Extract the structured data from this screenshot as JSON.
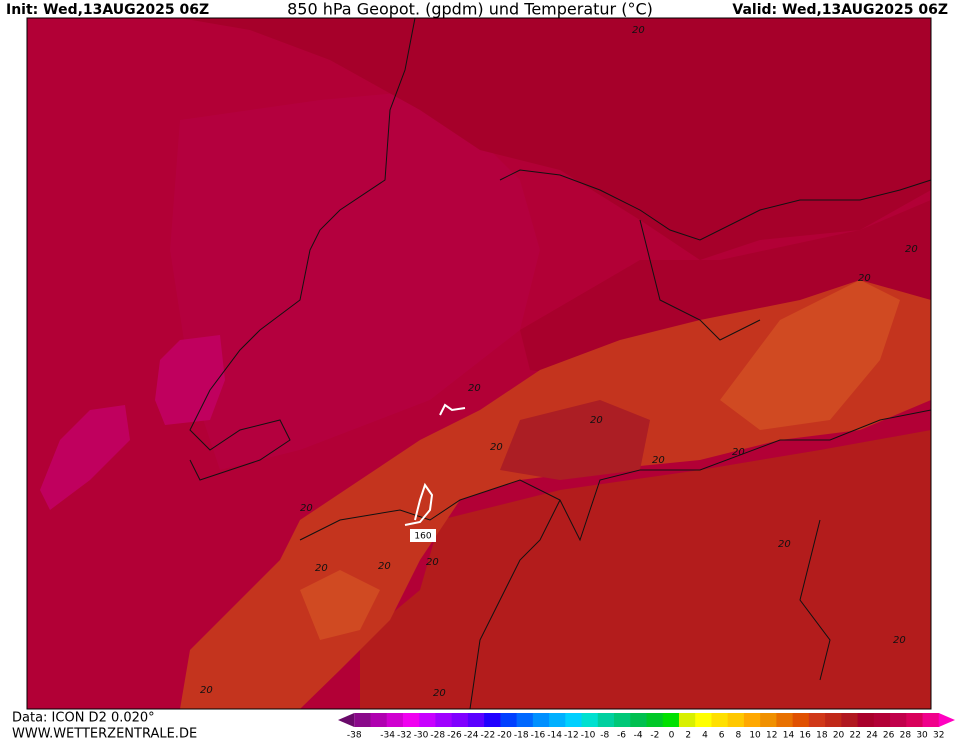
{
  "header": {
    "init": "Init: Wed,13AUG2025 06Z",
    "title": "850 hPa Geopot. (gpdm) und Temperatur (°C)",
    "valid": "Valid: Wed,13AUG2025 06Z"
  },
  "footer": {
    "data": "Data: ICON D2 0.020°",
    "site": "WWW.WETTERZENTRALE.DE"
  },
  "map": {
    "contour_labels": [
      "20",
      "20",
      "20",
      "20",
      "20",
      "20",
      "20",
      "20",
      "20",
      "20",
      "20",
      "20",
      "20",
      "20",
      "20",
      "20"
    ],
    "geopotential_label": "160"
  },
  "colorbar": {
    "labels": [
      -38,
      -34,
      -32,
      -30,
      -28,
      -26,
      -24,
      -22,
      -20,
      -18,
      -16,
      -14,
      -12,
      -10,
      -8,
      -6,
      -4,
      -2,
      0,
      2,
      4,
      6,
      8,
      10,
      12,
      14,
      16,
      18,
      20,
      22,
      24,
      26,
      28,
      30,
      32
    ],
    "colors": [
      "#6a0a6a",
      "#8a0a8a",
      "#b000b0",
      "#d000d0",
      "#f000f0",
      "#c800ff",
      "#a000ff",
      "#8000ff",
      "#5a00ff",
      "#2000ff",
      "#0040ff",
      "#0068ff",
      "#0090ff",
      "#00b0ff",
      "#00d0ff",
      "#00e0d0",
      "#00d0a0",
      "#00c878",
      "#00c050",
      "#00c828",
      "#00e000",
      "#d8f000",
      "#ffff00",
      "#ffe000",
      "#ffc800",
      "#ffa800",
      "#f09000",
      "#e87000",
      "#e05000",
      "#d03818",
      "#c02818",
      "#b01820",
      "#a8002a",
      "#b20036",
      "#c0004a",
      "#d8005a",
      "#f0008a",
      "#ff00c0"
    ]
  }
}
